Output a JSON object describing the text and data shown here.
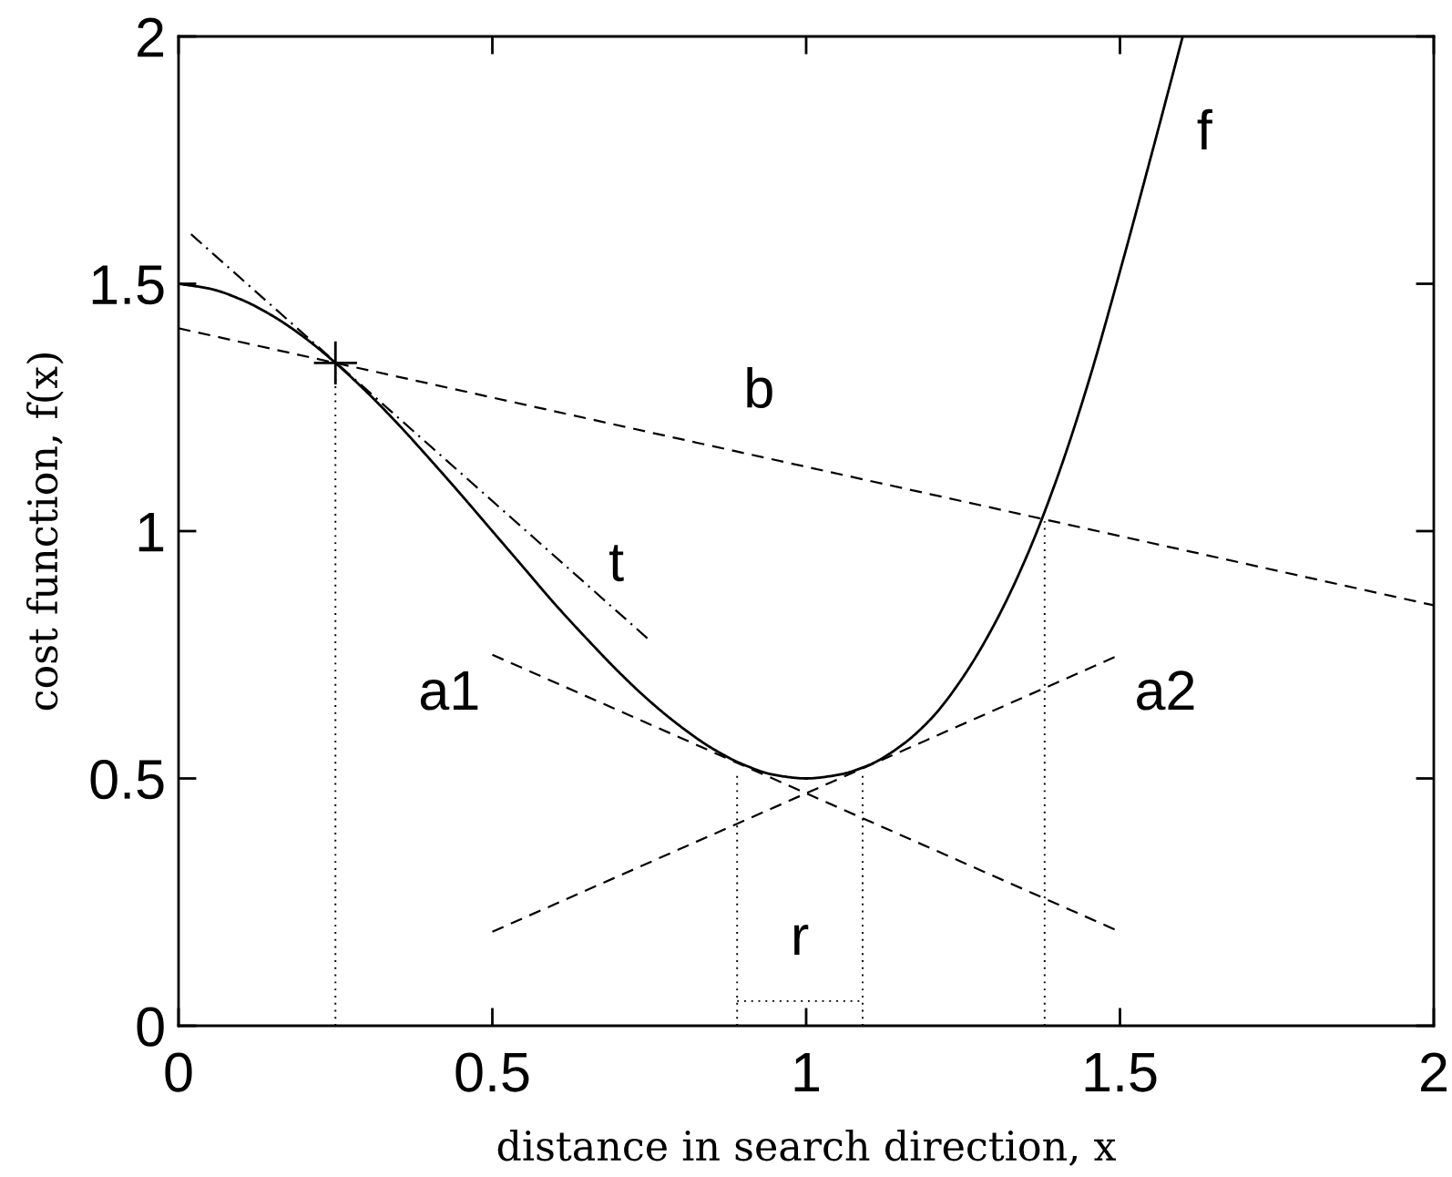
{
  "chart_data": {
    "type": "line",
    "xlabel": "distance in search direction, x",
    "ylabel": "cost function, f(x)",
    "xlim": [
      0,
      2
    ],
    "ylim": [
      0,
      2
    ],
    "xticks": [
      0,
      0.5,
      1,
      1.5,
      2
    ],
    "yticks": [
      0,
      0.5,
      1,
      1.5,
      2
    ],
    "grid": false,
    "series": [
      {
        "name": "f",
        "color": "#000000",
        "line_style": "solid",
        "x": [
          0,
          0.05,
          0.1,
          0.15,
          0.2,
          0.25,
          0.3,
          0.35,
          0.4,
          0.45,
          0.5,
          0.55,
          0.6,
          0.65,
          0.7,
          0.75,
          0.8,
          0.85,
          0.9,
          0.95,
          1,
          1.05,
          1.1,
          1.15,
          1.2,
          1.25,
          1.3,
          1.35,
          1.4,
          1.45,
          1.5,
          1.55,
          1.6
        ],
        "values": [
          1.5,
          1.49,
          1.468,
          1.435,
          1.392,
          1.34,
          1.281,
          1.216,
          1.146,
          1.074,
          1.0,
          0.926,
          0.852,
          0.783,
          0.717,
          0.657,
          0.605,
          0.561,
          0.528,
          0.507,
          0.5,
          0.507,
          0.527,
          0.565,
          0.622,
          0.705,
          0.812,
          0.945,
          1.108,
          1.302,
          1.525,
          1.76,
          2
        ]
      },
      {
        "name": "t",
        "color": "#000000",
        "line_style": "dashdot",
        "x": [
          0.02,
          0.75
        ],
        "values": [
          1.6,
          0.78
        ]
      },
      {
        "name": "b",
        "color": "#000000",
        "line_style": "dashed",
        "x": [
          0,
          2
        ],
        "values": [
          1.41,
          0.85
        ]
      },
      {
        "name": "a1",
        "color": "#000000",
        "line_style": "dashed",
        "x": [
          0.5,
          1.5
        ],
        "values": [
          0.75,
          0.19
        ]
      },
      {
        "name": "a2",
        "color": "#000000",
        "line_style": "dashed",
        "x": [
          0.5,
          1.5
        ],
        "values": [
          0.19,
          0.75
        ]
      },
      {
        "name": "r",
        "color": "#000000",
        "line_style": "dotted",
        "x": [
          0.89,
          1.09
        ],
        "values": [
          0.05,
          0.05
        ]
      },
      {
        "color": "#000000",
        "line_style": "dotted",
        "x": [
          0.25,
          0.25
        ],
        "values": [
          0,
          1.34
        ]
      },
      {
        "color": "#000000",
        "line_style": "dotted",
        "x": [
          0.89,
          0.89
        ],
        "values": [
          0,
          0.51
        ]
      },
      {
        "color": "#000000",
        "line_style": "dotted",
        "x": [
          1.09,
          1.09
        ],
        "values": [
          0,
          0.51
        ]
      },
      {
        "color": "#000000",
        "line_style": "dotted",
        "x": [
          1.38,
          1.38
        ],
        "values": [
          0,
          1.02
        ]
      },
      {
        "type": "scatter",
        "color": "#000000",
        "marker": "cross",
        "x": [
          0.25
        ],
        "values": [
          1.34
        ]
      }
    ]
  }
}
